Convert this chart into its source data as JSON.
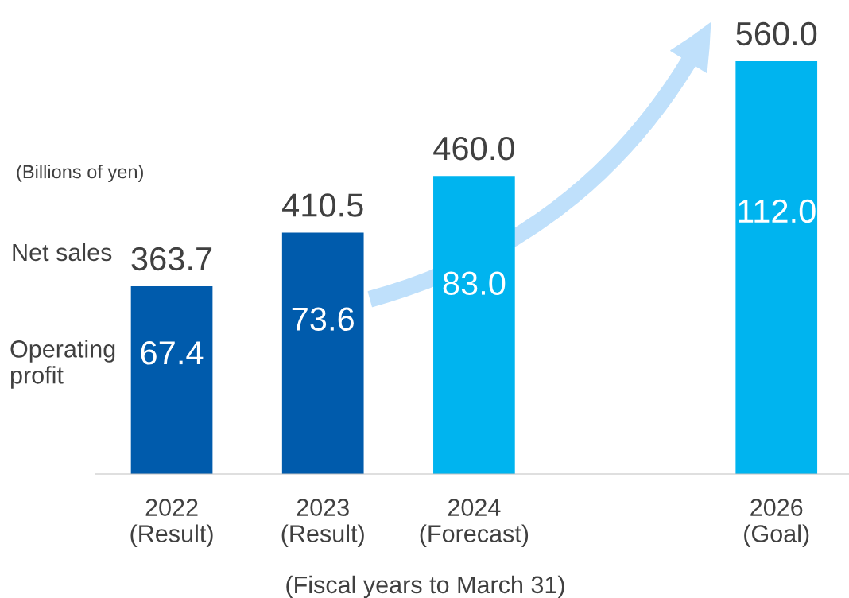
{
  "chart_data": {
    "type": "bar",
    "categories": [
      "2022\n(Result)",
      "2023\n(Result)",
      "2024\n(Forecast)",
      null,
      "2026\n(Goal)"
    ],
    "values": [
      363.7,
      410.5,
      460.0,
      null,
      560.0
    ],
    "value_labels": [
      "363.7",
      "410.5",
      "460.0",
      null,
      "560.0"
    ],
    "colors": [
      "#005bac",
      "#005bac",
      "#00b4ef",
      "#00b4ef",
      "#00b4ef"
    ],
    "tick_labels": "x",
    "ylim": [
      200,
      560
    ],
    "annotations": [
      "67.4",
      "73.6",
      "83.0",
      "112.0",
      "(Billions of yen)",
      "Net sales",
      "Operating\nprofit",
      "(Fiscal years to March 31)"
    ]
  }
}
